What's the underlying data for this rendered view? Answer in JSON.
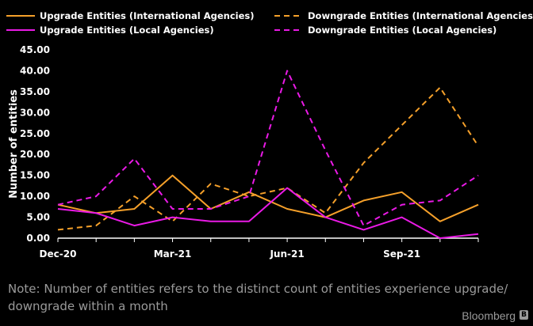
{
  "chart_data": {
    "type": "line",
    "ylabel": "Number of entities",
    "ylim": [
      0,
      45
    ],
    "yticks": [
      "45.00",
      "40.00",
      "35.00",
      "30.00",
      "25.00",
      "20.00",
      "15.00",
      "10.00",
      "5.00",
      "0.00"
    ],
    "x": [
      "2020-12",
      "2021-01",
      "2021-02",
      "2021-03",
      "2021-04",
      "2021-05",
      "2021-06",
      "2021-07",
      "2021-08",
      "2021-09",
      "2021-10",
      "2021-11"
    ],
    "xticks": [
      {
        "month": "2020-12",
        "label": "Dec-20"
      },
      {
        "month": "2021-03",
        "label": "Mar-21"
      },
      {
        "month": "2021-06",
        "label": "Jun-21"
      },
      {
        "month": "2021-09",
        "label": "Sep-21"
      }
    ],
    "grid": false,
    "legend_position": "top",
    "series": [
      {
        "name": "Upgrade Entities (International Agencies)",
        "color": "#f5a02a",
        "dash": "solid",
        "values": [
          8,
          6,
          7,
          15,
          7,
          11,
          7,
          5,
          9,
          11,
          4,
          8
        ]
      },
      {
        "name": "Downgrade Entities (International Agencies)",
        "color": "#f5a02a",
        "dash": "dashed",
        "values": [
          2,
          3,
          10,
          4,
          13,
          10,
          12,
          6,
          18,
          27,
          36,
          22
        ]
      },
      {
        "name": "Upgrade Entities (Local Agencies)",
        "color": "#ea1ae6",
        "dash": "solid",
        "values": [
          7,
          6,
          3,
          5,
          4,
          4,
          12,
          5,
          2,
          5,
          0,
          1
        ]
      },
      {
        "name": "Downgrade Entities (Local Agencies)",
        "color": "#ea1ae6",
        "dash": "dashed",
        "values": [
          8,
          10,
          19,
          7,
          7,
          10,
          40,
          21,
          3,
          8,
          9,
          15
        ]
      }
    ]
  },
  "note": "Note: Number of entities refers to the distinct count of entities experience upgrade/ downgrade within a month",
  "brand": "Bloomberg"
}
